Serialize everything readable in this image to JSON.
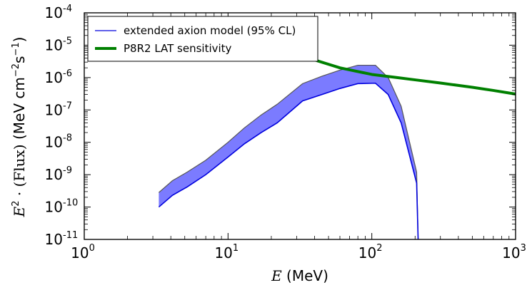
{
  "chart_data": {
    "type": "area",
    "x_scale": "log",
    "y_scale": "log",
    "xlim": [
      1,
      1000
    ],
    "ylim": [
      1e-11,
      0.0001
    ],
    "grid": false,
    "legend_position": "top-left",
    "xlabel": {
      "math": "E",
      "text": " (MeV)"
    },
    "ylabel": {
      "math": "E",
      "sup": "2",
      "mid": " · (Flux) ",
      "text": "(MeV cm",
      "sup2": "−2",
      "text2": "s",
      "sup3": "−1",
      "text3": ")"
    },
    "x_ticks": [
      {
        "value": 1,
        "base": "10",
        "exp": "0"
      },
      {
        "value": 10,
        "base": "10",
        "exp": "1"
      },
      {
        "value": 100,
        "base": "10",
        "exp": "2"
      },
      {
        "value": 1000,
        "base": "10",
        "exp": "3"
      }
    ],
    "y_ticks": [
      {
        "value": 1e-11,
        "base": "10",
        "exp": "-11"
      },
      {
        "value": 1e-10,
        "base": "10",
        "exp": "-10"
      },
      {
        "value": 1e-09,
        "base": "10",
        "exp": "-9"
      },
      {
        "value": 1e-08,
        "base": "10",
        "exp": "-8"
      },
      {
        "value": 1e-07,
        "base": "10",
        "exp": "-7"
      },
      {
        "value": 1e-06,
        "base": "10",
        "exp": "-6"
      },
      {
        "value": 1e-05,
        "base": "10",
        "exp": "-5"
      },
      {
        "value": 0.0001,
        "base": "10",
        "exp": "-4"
      }
    ],
    "series": [
      {
        "name": "extended axion model (95% CL)",
        "kind": "band",
        "fill_color": "#7b7bff",
        "edge_color": "#0000dd",
        "upper_edge_color": "#555555",
        "x": [
          3.3,
          4.1,
          5.2,
          7.0,
          10.0,
          13.0,
          17.0,
          22.0,
          33.0,
          45.0,
          60.0,
          80.0,
          106.0,
          130.0,
          160.0,
          205.0,
          210.0
        ],
        "upper": [
          2.8e-10,
          6.5e-10,
          1.2e-09,
          2.8e-09,
          1e-08,
          2.8e-08,
          7e-08,
          1.5e-07,
          6.5e-07,
          1.1e-06,
          1.7e-06,
          2.4e-06,
          2.4e-06,
          1e-06,
          1.3e-07,
          1.2e-09,
          1e-11
        ],
        "lower": [
          1e-10,
          2.3e-10,
          4.2e-10,
          1e-09,
          3.5e-09,
          9e-09,
          2e-08,
          4e-08,
          1.9e-07,
          3e-07,
          4.6e-07,
          6.5e-07,
          6.7e-07,
          3e-07,
          4e-08,
          5.5e-10,
          1e-11
        ]
      },
      {
        "name": "P8R2 LAT sensitivity",
        "kind": "line",
        "color": "#008000",
        "x": [
          40,
          60,
          100,
          150,
          200,
          300,
          500,
          700,
          1000
        ],
        "y": [
          3.5e-06,
          2e-06,
          1.25e-06,
          1e-06,
          8.5e-07,
          6.8e-07,
          5e-07,
          4e-07,
          3.1e-07
        ]
      }
    ]
  }
}
